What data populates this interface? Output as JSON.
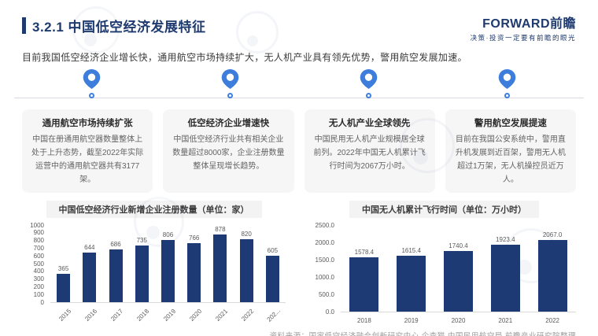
{
  "header": {
    "title": "3.2.1 中国低空经济发展特征",
    "logo_text": "FORWARD前瞻",
    "logo_tagline": "决策·投资一定要有前瞻的眼光"
  },
  "intro": "目前我国低空经济企业增长快，通用航空市场持续扩大，无人机产业具有领先优势，警用航空发展加速。",
  "features": [
    {
      "title": "通用航空市场持续扩张",
      "body": "中国在册通用航空器数量整体上处于上升态势，截至2022年实际运营中的通用航空器共有3177架。"
    },
    {
      "title": "低空经济企业增速快",
      "body": "中国低空经济行业共有相关企业数量超过8000家，企业注册数量整体呈现增长趋势。"
    },
    {
      "title": "无人机产业全球领先",
      "body": "中国民用无人机产业规模居全球前列。2022年中国无人机累计飞行时间为2067万小时。"
    },
    {
      "title": "警用航空发展提速",
      "body": "目前在我国公安系统中，警用直升机发展到近百架，警用无人机超过1万架，无人机操控员近万人。"
    }
  ],
  "chart_data": [
    {
      "type": "bar",
      "title": "中国低空经济行业新增企业注册数量（单位：家）",
      "categories": [
        "2015",
        "2016",
        "2017",
        "2018",
        "2019",
        "2020",
        "2021",
        "2022",
        "202..."
      ],
      "values": [
        365,
        644,
        686,
        735,
        806,
        766,
        878,
        820,
        605
      ],
      "value_labels": [
        "365",
        "644",
        "686",
        "735",
        "806",
        "766",
        "878",
        "820",
        "605"
      ],
      "ylim": [
        0,
        1000
      ],
      "ytick_labels": [
        "0",
        "100",
        "200",
        "300",
        "400",
        "500",
        "600",
        "700",
        "800",
        "900",
        "1000"
      ],
      "xlabel": "",
      "ylabel": "",
      "grid": false,
      "legend": "none",
      "bar_color": "#1e3a75"
    },
    {
      "type": "bar",
      "title": "中国无人机累计飞行时间（单位：万小时）",
      "categories": [
        "2018",
        "2019",
        "2020",
        "2021",
        "2022"
      ],
      "values": [
        1578.4,
        1615.4,
        1740.4,
        1923.4,
        2067.0
      ],
      "value_labels": [
        "1578.4",
        "1615.4",
        "1740.4",
        "1923.4",
        "2067.0"
      ],
      "ylim": [
        0,
        2500
      ],
      "ytick_labels": [
        "0.0",
        "500.0",
        "1000.0",
        "1500.0",
        "2000.0",
        "2500.0"
      ],
      "xlabel": "",
      "ylabel": "",
      "grid": false,
      "legend": "none",
      "bar_color": "#1e3a75"
    }
  ],
  "source": "资料来源：国家低空经济融合创新研究中心 企查猫 中国民用航空局 前瞻产业研究院整理",
  "colors": {
    "navy": "#1e3a6e",
    "bar_navy": "#1e3a75",
    "pin_blue": "#3d7edd",
    "card_bg": "#f6f6f7",
    "axis_gray": "#595959",
    "source_gray": "#9a9a9a"
  }
}
